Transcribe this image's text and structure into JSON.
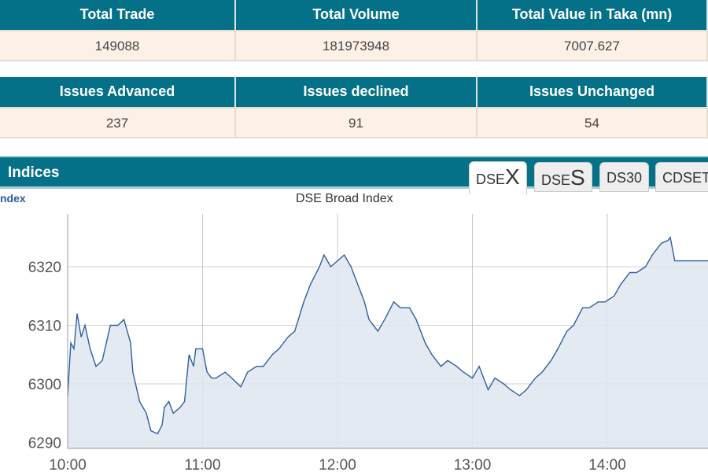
{
  "summary": {
    "headers": [
      "Total Trade",
      "Total Volume",
      "Total Value in Taka (mn)"
    ],
    "values": [
      "149088",
      "181973948",
      "7007.627"
    ]
  },
  "issues": {
    "headers": [
      "Issues Advanced",
      "Issues declined",
      "Issues Unchanged"
    ],
    "values": [
      "237",
      "91",
      "54"
    ]
  },
  "indices": {
    "title": "Indices",
    "tabs": [
      {
        "small": "DSE",
        "big": "X"
      },
      {
        "small": "DSE",
        "big": "S"
      },
      {
        "small": "DS30",
        "big": ""
      },
      {
        "small": "CDSET",
        "big": ""
      }
    ],
    "active_tab": 0,
    "sub_label": "ndex"
  },
  "chart_data": {
    "type": "area",
    "title": "DSE Broad Index",
    "xlabel": "",
    "ylabel": "",
    "x_ticks": [
      "10:00",
      "11:00",
      "12:00",
      "13:00",
      "14:00"
    ],
    "y_ticks": [
      6290,
      6300,
      6310,
      6320
    ],
    "ylim": [
      6289,
      6329
    ],
    "xlim_minutes_from_10": [
      0,
      285
    ],
    "x": [
      0,
      1.4,
      2.8,
      4.2,
      6,
      7.7,
      10,
      12.6,
      15.4,
      19,
      22.4,
      25,
      28,
      29,
      32,
      35,
      37,
      40,
      42,
      43,
      45,
      47,
      50,
      52,
      54,
      56,
      57,
      60,
      62,
      64,
      66,
      70,
      73,
      77,
      80,
      84,
      87,
      91,
      94,
      98,
      101,
      105,
      108,
      112,
      114,
      117,
      120,
      123,
      126,
      129,
      132,
      134,
      138,
      141,
      145,
      148,
      152,
      155,
      159,
      162,
      166,
      169,
      173,
      176,
      180,
      183,
      187,
      190,
      194,
      197,
      201,
      204,
      208,
      211,
      215,
      218,
      222,
      225,
      229,
      232,
      236,
      239,
      243,
      246,
      250,
      253,
      257,
      260,
      264,
      267,
      268,
      270,
      285
    ],
    "y": [
      6298,
      6307,
      6306,
      6312,
      6308,
      6310,
      6306,
      6303,
      6304,
      6310,
      6310,
      6311,
      6307,
      6302,
      6297,
      6295,
      6292,
      6291.5,
      6293,
      6296,
      6297,
      6295,
      6296,
      6297,
      6305,
      6303,
      6306,
      6306,
      6302,
      6301,
      6301,
      6302,
      6301,
      6299.5,
      6302,
      6303,
      6303,
      6305,
      6306,
      6308,
      6309,
      6314,
      6317,
      6320,
      6322,
      6320,
      6321,
      6322,
      6320,
      6317,
      6314,
      6311,
      6309,
      6311,
      6314,
      6313,
      6313,
      6311,
      6307,
      6305,
      6303,
      6304,
      6303,
      6302,
      6301,
      6303,
      6299,
      6301,
      6300,
      6299,
      6298,
      6299,
      6301,
      6302,
      6304,
      6306,
      6309,
      6310,
      6313,
      6313,
      6314,
      6314,
      6315,
      6317,
      6319,
      6319,
      6320,
      6322,
      6324,
      6324.5,
      6325,
      6321,
      6321
    ],
    "line_color": "#2f5f9e",
    "fill_color": "#dfe6f0"
  }
}
